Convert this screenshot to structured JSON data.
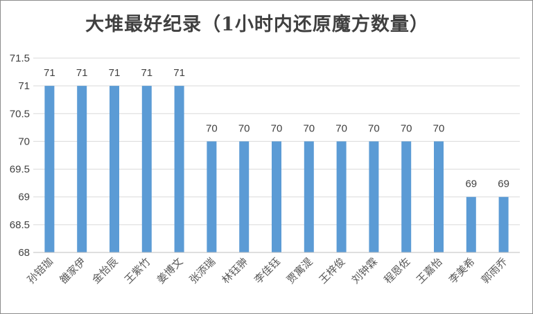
{
  "chart_data": {
    "type": "bar",
    "title": "大堆最好纪录（1小时内还原魔方数量）",
    "categories": [
      "孙锫珈",
      "雒家伊",
      "金怡辰",
      "王紫竹",
      "姜博文",
      "张添瑞",
      "林钰翀",
      "李佳钰",
      "贾寓湜",
      "王梓俊",
      "刘钟霖",
      "程恩佐",
      "王嘉怡",
      "李美希",
      "郭雨乔"
    ],
    "values": [
      71,
      71,
      71,
      71,
      71,
      70,
      70,
      70,
      70,
      70,
      70,
      70,
      70,
      69,
      69
    ],
    "ylim": [
      68,
      71.5
    ],
    "yticks": [
      68,
      68.5,
      69,
      69.5,
      70,
      70.5,
      71,
      71.5
    ],
    "grid": true,
    "legend": "none",
    "bar_color": "#5b9bd5",
    "grid_color": "#d9d9d9"
  }
}
